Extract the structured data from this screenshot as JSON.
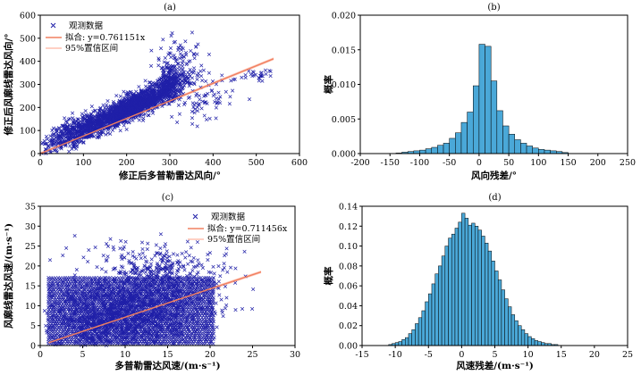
{
  "chart_data": [
    {
      "panel": "(a)",
      "type": "scatter",
      "xlabel": "修正后多普勒雷达风向/°",
      "ylabel": "修正后风廓线雷达风向/°",
      "xlim": [
        0,
        600
      ],
      "ylim": [
        0,
        600
      ],
      "xticks": [
        "0",
        "100",
        "200",
        "300",
        "400",
        "500",
        "600"
      ],
      "yticks": [
        "0",
        "100",
        "200",
        "300",
        "400",
        "500",
        "600"
      ],
      "legend": [
        "观测数据",
        "拟合: y=0.761151x",
        "95%置信区间"
      ],
      "legend_position": "top-left",
      "fit": {
        "label": "拟合: y=0.761151x",
        "slope": 0.761151,
        "x_range": [
          0,
          540
        ]
      },
      "band_halfwidth": 6,
      "clusters": [
        {
          "n": 1600,
          "cx": 210,
          "cy": 200,
          "sx": 50,
          "sy": 50,
          "rho": 0.85
        },
        {
          "n": 500,
          "cx": 80,
          "cy": 90,
          "sx": 40,
          "sy": 45,
          "rho": 0.7
        },
        {
          "n": 300,
          "cx": 300,
          "cy": 300,
          "sx": 20,
          "sy": 40,
          "rho": 0.3
        },
        {
          "n": 80,
          "cx": 320,
          "cy": 420,
          "sx": 30,
          "sy": 55,
          "rho": 0.1
        },
        {
          "n": 80,
          "cx": 380,
          "cy": 240,
          "sx": 40,
          "sy": 50,
          "rho": 0.1
        },
        {
          "n": 30,
          "cx": 500,
          "cy": 340,
          "sx": 25,
          "sy": 15,
          "rho": 0.2
        }
      ],
      "x_clip": [
        0,
        535
      ],
      "y_clip": [
        0,
        525
      ],
      "marker": "x",
      "color": "#2020a8",
      "fit_color": "#f08060",
      "ci_color": "#ffc0b0"
    },
    {
      "panel": "(b)",
      "type": "bar",
      "xlabel": "风向残差/°",
      "ylabel": "概率",
      "xlim": [
        -200,
        250
      ],
      "ylim": [
        0,
        0.02
      ],
      "xticks": [
        "-200",
        "-150",
        "-100",
        "-50",
        "0",
        "50",
        "100",
        "150",
        "200",
        "250"
      ],
      "yticks": [
        "0.000",
        "0.005",
        "0.010",
        "0.015",
        "0.020"
      ],
      "bin_start": -140,
      "bin_width": 10,
      "values": [
        8e-05,
        0.0002,
        0.0003,
        0.0004,
        0.0005,
        0.0007,
        0.0009,
        0.0012,
        0.0015,
        0.0022,
        0.003,
        0.0045,
        0.006,
        0.0098,
        0.0158,
        0.0155,
        0.0105,
        0.0062,
        0.004,
        0.0028,
        0.002,
        0.0015,
        0.0011,
        0.0008,
        0.0006,
        0.0005,
        0.0004,
        0.0003,
        0.00015
      ],
      "bar_color": "#4aa8d8"
    },
    {
      "panel": "(c)",
      "type": "scatter",
      "xlabel": "多普勒雷达风速/(m·s⁻¹)",
      "ylabel": "风廓线雷达风速/(m·s⁻¹)",
      "xlim": [
        0,
        30
      ],
      "ylim": [
        0,
        35
      ],
      "xticks": [
        "0",
        "5",
        "10",
        "15",
        "20",
        "25",
        "30"
      ],
      "yticks": [
        "0",
        "5",
        "10",
        "15",
        "20",
        "25",
        "30",
        "35"
      ],
      "legend": [
        "观测数据",
        "拟合: y=0.711456x",
        "95%置信区间"
      ],
      "legend_position": "top-right",
      "fit": {
        "label": "拟合: y=0.711456x",
        "slope": 0.711456,
        "x_range": [
          1,
          26
        ]
      },
      "band_halfwidth": 0.35,
      "band_rows": {
        "x_min": 1,
        "x_max": 20.5,
        "y_min": 0.5,
        "y_max": 17,
        "step": 0.5
      },
      "clusters": [
        {
          "n": 1400,
          "cx": 10,
          "cy": 8.5,
          "sx": 4.5,
          "sy": 4.5,
          "rho": 0.25
        },
        {
          "n": 200,
          "cx": 14,
          "cy": 19,
          "sx": 3,
          "sy": 2.5,
          "rho": 0.1
        },
        {
          "n": 40,
          "cx": 10,
          "cy": 24,
          "sx": 4,
          "sy": 2,
          "rho": 0
        },
        {
          "n": 30,
          "cx": 22,
          "cy": 14,
          "sx": 1.8,
          "sy": 4,
          "rho": 0
        }
      ],
      "x_clip": [
        0.5,
        26.5
      ],
      "y_clip": [
        0,
        31
      ],
      "marker": "x",
      "color": "#2020a8",
      "fit_color": "#f08060",
      "ci_color": "#ffc0b0"
    },
    {
      "panel": "(d)",
      "type": "bar",
      "xlabel": "风速残差/(m·s⁻¹)",
      "ylabel": "概率",
      "xlim": [
        -15,
        25
      ],
      "ylim": [
        0,
        0.14
      ],
      "xticks": [
        "-15",
        "-10",
        "-5",
        "0",
        "5",
        "10",
        "15",
        "20",
        "25"
      ],
      "yticks": [
        "0.00",
        "0.02",
        "0.04",
        "0.06",
        "0.08",
        "0.10",
        "0.12",
        "0.14"
      ],
      "bin_start": -11,
      "bin_width": 0.5,
      "values": [
        0.001,
        0.002,
        0.003,
        0.004,
        0.006,
        0.008,
        0.012,
        0.016,
        0.022,
        0.028,
        0.035,
        0.044,
        0.052,
        0.062,
        0.072,
        0.08,
        0.09,
        0.1,
        0.108,
        0.112,
        0.118,
        0.124,
        0.133,
        0.128,
        0.121,
        0.123,
        0.12,
        0.116,
        0.11,
        0.103,
        0.095,
        0.085,
        0.075,
        0.066,
        0.056,
        0.047,
        0.039,
        0.031,
        0.025,
        0.02,
        0.016,
        0.012,
        0.009,
        0.007,
        0.005,
        0.004,
        0.003,
        0.002,
        0.002,
        0.001,
        0.001
      ],
      "bar_color": "#4aa8d8"
    }
  ]
}
